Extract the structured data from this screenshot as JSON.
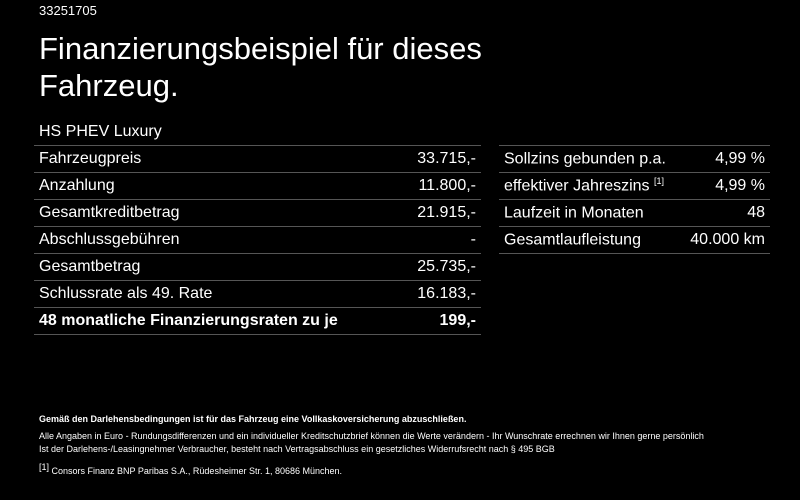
{
  "id": "33251705",
  "title": "Finanzierungsbeispiel für dieses Fahrzeug.",
  "model": "HS PHEV Luxury",
  "left_rows": [
    {
      "label": "Fahrzeugpreis",
      "value": "33.715,-"
    },
    {
      "label": "Anzahlung",
      "value": "11.800,-"
    },
    {
      "label": "Gesamtkreditbetrag",
      "value": "21.915,-"
    },
    {
      "label": "Abschlussgebühren",
      "value": "-"
    },
    {
      "label": "Gesamtbetrag",
      "value": "25.735,-"
    },
    {
      "label": "Schlussrate als 49. Rate",
      "value": "16.183,-"
    },
    {
      "label": "48 monatliche Finanzierungsraten zu je",
      "value": "199,-"
    }
  ],
  "right_rows": [
    {
      "label": "Sollzins gebunden p.a.",
      "sup": "",
      "value": "4,99 %"
    },
    {
      "label": "effektiver Jahreszins",
      "sup": "[1]",
      "value": "4,99 %"
    },
    {
      "label": "Laufzeit in Monaten",
      "sup": "",
      "value": "48"
    },
    {
      "label": "Gesamtlaufleistung",
      "sup": "",
      "value": "40.000 km"
    }
  ],
  "footnotes": {
    "bold": "Gemäß den Darlehensbedingungen ist für das Fahrzeug eine Vollkaskoversicherung abzuschließen.",
    "line1": "Alle Angaben in Euro - Rundungsdifferenzen und ein individueller Kreditschutzbrief können die Werte verändern - Ihr Wunschrate errechnen wir Ihnen gerne persönlich",
    "line2": "Ist der Darlehens-/Leasingnehmer Verbraucher, besteht nach Vertragsabschluss ein gesetzliches Widerrufsrecht nach § 495 BGB",
    "ref_mark": "[1]",
    "ref_text": "Consors Finanz BNP Paribas S.A., Rüdesheimer Str. 1, 80686 München."
  }
}
